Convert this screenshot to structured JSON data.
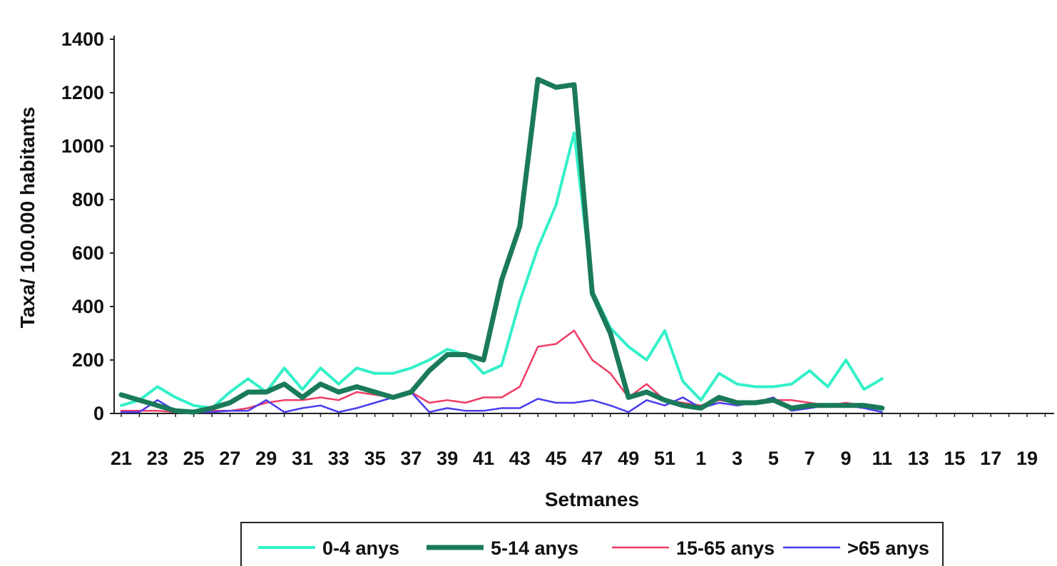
{
  "chart_data": {
    "type": "line",
    "xlabel": "Setmanes",
    "ylabel": "Taxa/ 100.000 habitants",
    "ylim": [
      0,
      1400
    ],
    "yticks": [
      0,
      200,
      400,
      600,
      800,
      1000,
      1200,
      1400
    ],
    "x_tick_labels": [
      "21",
      "23",
      "25",
      "27",
      "29",
      "31",
      "33",
      "35",
      "37",
      "39",
      "41",
      "43",
      "45",
      "47",
      "49",
      "51",
      "1",
      "3",
      "5",
      "7",
      "9",
      "11",
      "13",
      "15",
      "17",
      "19"
    ],
    "x": [
      "21",
      "22",
      "23",
      "24",
      "25",
      "26",
      "27",
      "28",
      "29",
      "30",
      "31",
      "32",
      "33",
      "34",
      "35",
      "36",
      "37",
      "38",
      "39",
      "40",
      "41",
      "42",
      "43",
      "44",
      "45",
      "46",
      "47",
      "48",
      "49",
      "50",
      "51",
      "52",
      "1",
      "2",
      "3",
      "4",
      "5",
      "6",
      "7",
      "8",
      "9",
      "10",
      "11",
      "12",
      "13",
      "14",
      "15",
      "16",
      "17",
      "18",
      "19",
      "20"
    ],
    "grid": false,
    "legend_position": "bottom",
    "series": [
      {
        "name": "0-4 anys",
        "color": "#33f0c8",
        "values": [
          30,
          50,
          100,
          60,
          30,
          20,
          80,
          130,
          80,
          170,
          90,
          170,
          110,
          170,
          150,
          150,
          170,
          200,
          240,
          220,
          150,
          180,
          420,
          620,
          780,
          1050,
          460,
          320,
          250,
          200,
          310,
          120,
          50,
          150,
          110,
          100,
          100,
          110,
          160,
          100,
          200,
          90,
          130,
          null,
          null,
          null,
          null,
          null,
          null,
          null,
          null,
          null
        ]
      },
      {
        "name": "5-14 anys",
        "color": "#1a7a5a",
        "values": [
          70,
          50,
          30,
          10,
          5,
          20,
          40,
          80,
          80,
          110,
          60,
          110,
          80,
          100,
          80,
          60,
          80,
          160,
          220,
          220,
          200,
          500,
          700,
          1250,
          1220,
          1230,
          450,
          300,
          60,
          80,
          50,
          30,
          20,
          60,
          40,
          40,
          50,
          20,
          30,
          30,
          30,
          30,
          20,
          null,
          null,
          null,
          null,
          null,
          null,
          null,
          null,
          null
        ]
      },
      {
        "name": "15-65 anys",
        "color": "#f03c64",
        "values": [
          10,
          10,
          10,
          5,
          5,
          10,
          10,
          20,
          40,
          50,
          50,
          60,
          50,
          80,
          70,
          60,
          80,
          40,
          50,
          40,
          60,
          60,
          100,
          250,
          260,
          310,
          200,
          150,
          60,
          110,
          50,
          40,
          30,
          50,
          40,
          40,
          50,
          50,
          40,
          30,
          40,
          30,
          20,
          null,
          null,
          null,
          null,
          null,
          null,
          null,
          null,
          null
        ]
      },
      {
        "name": ">65 anys",
        "color": "#4a3cf0",
        "values": [
          5,
          5,
          50,
          10,
          5,
          5,
          10,
          10,
          50,
          5,
          20,
          30,
          5,
          20,
          40,
          60,
          80,
          5,
          20,
          10,
          10,
          20,
          20,
          55,
          40,
          40,
          50,
          30,
          5,
          50,
          30,
          60,
          20,
          40,
          30,
          40,
          60,
          10,
          20,
          30,
          30,
          20,
          5,
          null,
          null,
          null,
          null,
          null,
          null,
          null,
          null,
          null
        ]
      }
    ]
  }
}
